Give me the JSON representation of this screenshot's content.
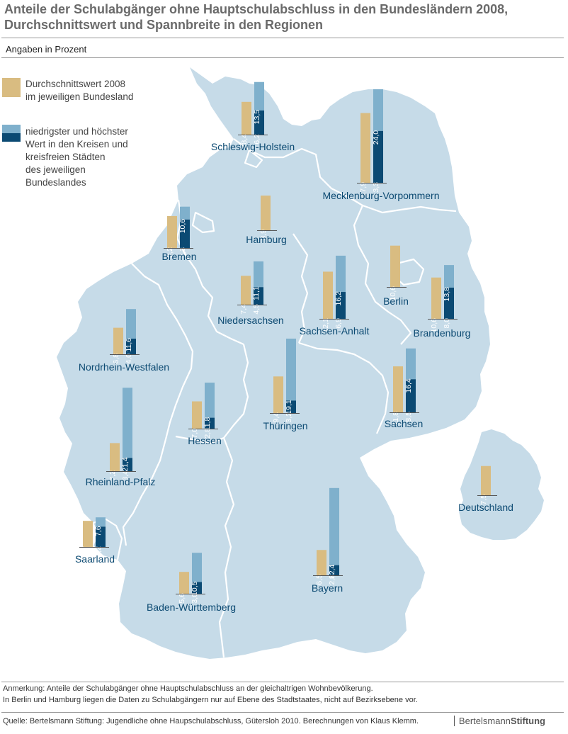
{
  "header": {
    "title_line1": "Anteile der Schulabgänger ohne Hauptschulabschluss in den Bundesländern 2008,",
    "title_line2": "Durchschnittswert und Spannbreite in den Regionen",
    "subtitle": "Angaben in Prozent"
  },
  "legend": {
    "avg_label_1": "Durchschnittswert 2008",
    "avg_label_2": "im jeweiligen Bundesland",
    "range_label_1": "niedrigster und höchster",
    "range_label_2": "Wert in den Kreisen und",
    "range_label_3": "kreisfreien Städten",
    "range_label_4": "des jeweiligen",
    "range_label_5": "Bundeslandes"
  },
  "colors": {
    "average": "#d9bc81",
    "max": "#7fb0cc",
    "min": "#0b4a73",
    "map_fill": "#c6dbe8",
    "border": "#ffffff",
    "region_label": "#0c4a72"
  },
  "chart_data": {
    "type": "bar",
    "unit": "Prozent",
    "series_keys": [
      "durchschnitt",
      "minimum",
      "maximum"
    ],
    "regions": [
      {
        "name": "Schleswig-Holstein",
        "durchschnitt": 8.4,
        "minimum": 6.2,
        "maximum": 13.5
      },
      {
        "name": "Mecklenburg-Vorpommern",
        "durchschnitt": 17.9,
        "minimum": 13.3,
        "maximum": 24.0
      },
      {
        "name": "Hamburg",
        "durchschnitt": 8.9
      },
      {
        "name": "Bremen",
        "durchschnitt": 8.2,
        "minimum": 7.3,
        "maximum": 10.6
      },
      {
        "name": "Niedersachsen",
        "durchschnitt": 7.4,
        "minimum": 4.5,
        "maximum": 11.1
      },
      {
        "name": "Sachsen-Anhalt",
        "durchschnitt": 12.1,
        "minimum": 6.9,
        "maximum": 16.2
      },
      {
        "name": "Berlin",
        "durchschnitt": 10.6
      },
      {
        "name": "Brandenburg",
        "durchschnitt": 10.6,
        "minimum": 8.0,
        "maximum": 13.8
      },
      {
        "name": "Nordrhein-Westfalen",
        "durchschnitt": 6.8,
        "minimum": 4.0,
        "maximum": 11.6
      },
      {
        "name": "Hessen",
        "durchschnitt": 7.0,
        "minimum": 2.8,
        "maximum": 11.8
      },
      {
        "name": "Thüringen",
        "durchschnitt": 9.4,
        "minimum": 3.2,
        "maximum": 19.1
      },
      {
        "name": "Sachsen",
        "durchschnitt": 11.8,
        "minimum": 8.5,
        "maximum": 16.4
      },
      {
        "name": "Rheinland-Pfalz",
        "durchschnitt": 7.2,
        "minimum": 3.4,
        "maximum": 21.4
      },
      {
        "name": "Saarland",
        "durchschnitt": 6.7,
        "minimum": 5.2,
        "maximum": 7.6
      },
      {
        "name": "Bayern",
        "durchschnitt": 6.5,
        "minimum": 2.6,
        "maximum": 22.4
      },
      {
        "name": "Baden-Württemberg",
        "durchschnitt": 5.6,
        "minimum": 3.0,
        "maximum": 10.5
      },
      {
        "name": "Deutschland",
        "durchschnitt": 7.5
      }
    ]
  },
  "footer": {
    "note_1": "Anmerkung: Anteile der Schulabgänger ohne Hauptschulabschluss an der gleichaltrigen Wohnbevölkerung.",
    "note_2": "In Berlin und Hamburg liegen die Daten zu Schulabgängern nur auf Ebene des Stadtstaates, nicht auf Bezirksebene vor.",
    "source": "Quelle: Bertelsmann Stiftung: Jugendliche ohne Haupschulabschluss, Gütersloh 2010. Berechnungen von Klaus Klemm.",
    "brand_part1": "Bertelsmann",
    "brand_part2": "Stiftung"
  }
}
